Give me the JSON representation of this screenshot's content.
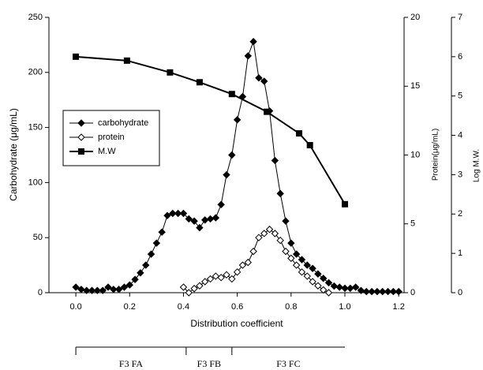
{
  "chart_data": {
    "type": "line",
    "xlabel": "Distribution coefficient",
    "ylabel": "Carbohydrate (μg/mL)",
    "y2label": "Protein(μg/mL)",
    "y3label": "Log M.W.",
    "xlim": [
      -0.1,
      1.22
    ],
    "xticks": [
      {
        "value": 0,
        "label": "0.0"
      },
      0.2,
      0.4,
      0.6,
      0.8,
      {
        "value": 1,
        "label": "1.0"
      },
      1.2
    ],
    "ylim": [
      0,
      250
    ],
    "yticks": [
      0,
      50,
      100,
      150,
      200,
      250
    ],
    "y2lim": [
      0,
      20
    ],
    "y2ticks": [
      0,
      5,
      10,
      15,
      20
    ],
    "y3lim": [
      0,
      7
    ],
    "y3ticks": [
      0,
      1,
      2,
      3,
      4,
      5,
      6,
      7
    ],
    "legend": "left",
    "series": [
      {
        "name": "carbohydrate",
        "color": "#000000",
        "marker": "diamond-filled",
        "x": [
          0,
          0.02,
          0.04,
          0.06,
          0.08,
          0.1,
          0.12,
          0.14,
          0.16,
          0.18,
          0.2,
          0.22,
          0.24,
          0.26,
          0.28,
          0.3,
          0.32,
          0.34,
          0.36,
          0.38,
          0.4,
          0.42,
          0.44,
          0.46,
          0.48,
          0.5,
          0.52,
          0.54,
          0.56,
          0.58,
          0.6,
          0.62,
          0.64,
          0.66,
          0.68,
          0.7,
          0.72,
          0.74,
          0.76,
          0.78,
          0.8,
          0.82,
          0.84,
          0.86,
          0.88,
          0.9,
          0.92,
          0.94,
          0.96,
          0.98,
          1,
          1.02,
          1.04,
          1.06,
          1.08,
          1.1,
          1.12,
          1.14,
          1.16,
          1.18,
          1.2
        ],
        "values": [
          5,
          3,
          2,
          2,
          2,
          2,
          5,
          3,
          3,
          5,
          7,
          12,
          18,
          25,
          35,
          45,
          55,
          70,
          72,
          72,
          72,
          67,
          65,
          59,
          66,
          67,
          68,
          80,
          107,
          125,
          157,
          178,
          215,
          228,
          195,
          192,
          165,
          120,
          90,
          65,
          45,
          35,
          30,
          25,
          22,
          17,
          13,
          9,
          6,
          5,
          4,
          4,
          5,
          2,
          1,
          1,
          1,
          1,
          1,
          1,
          1
        ]
      },
      {
        "name": "protein",
        "color": "#000000",
        "marker": "diamond-open",
        "axis": "y2",
        "x": [
          0.4,
          0.42,
          0.44,
          0.46,
          0.48,
          0.5,
          0.52,
          0.54,
          0.56,
          0.58,
          0.6,
          0.62,
          0.64,
          0.66,
          0.68,
          0.7,
          0.72,
          0.74,
          0.76,
          0.78,
          0.8,
          0.82,
          0.84,
          0.86,
          0.88,
          0.9,
          0.92,
          0.94
        ],
        "values": [
          0.4,
          0,
          0.3,
          0.5,
          0.8,
          1.0,
          1.2,
          1.1,
          1.3,
          1.0,
          1.5,
          2.0,
          2.2,
          3.0,
          4.0,
          4.3,
          4.6,
          4.3,
          3.8,
          3.0,
          2.5,
          2.0,
          1.5,
          1.2,
          0.8,
          0.5,
          0.2,
          0
        ]
      },
      {
        "name": "M.W",
        "color": "#000000",
        "marker": "square-filled",
        "axis": "y3",
        "x": [
          0,
          0.19,
          0.35,
          0.46,
          0.58,
          0.71,
          0.83,
          0.87,
          1
        ],
        "values": [
          6.0,
          5.9,
          5.6,
          5.35,
          5.05,
          4.6,
          4.05,
          3.75,
          2.25
        ]
      }
    ],
    "fractions": [
      {
        "label": "F3  FA",
        "start": 0,
        "end": 0.41
      },
      {
        "label": "F3  FB",
        "start": 0.41,
        "end": 0.58
      },
      {
        "label": "F3  FC",
        "start": 0.58,
        "end": 1
      }
    ]
  }
}
